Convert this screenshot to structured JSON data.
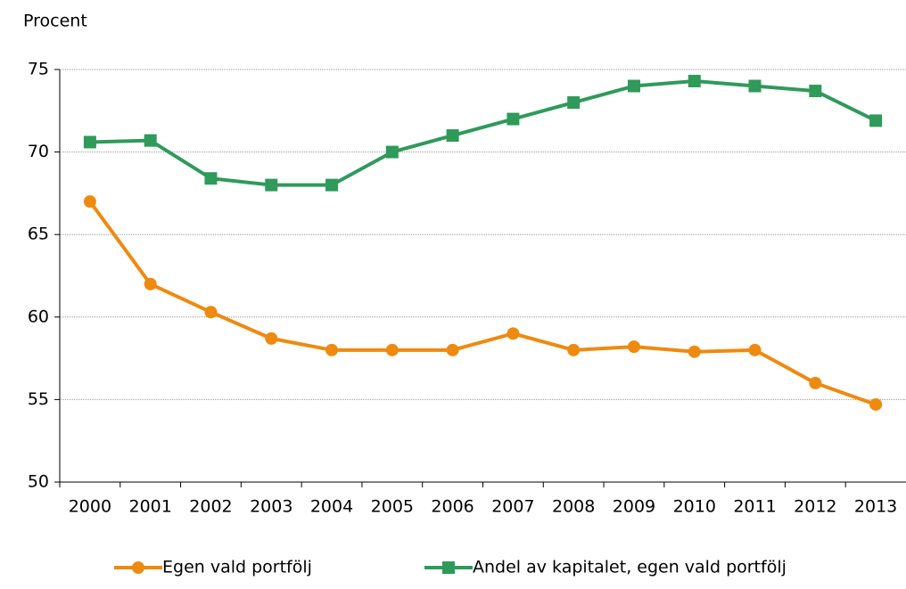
{
  "chart_data": {
    "type": "line",
    "y_label": "Procent",
    "categories": [
      "2000",
      "2001",
      "2002",
      "2003",
      "2004",
      "2005",
      "2006",
      "2007",
      "2008",
      "2009",
      "2010",
      "2011",
      "2012",
      "2013"
    ],
    "series": [
      {
        "name": "Egen vald portfölj",
        "color": "#ef8a10",
        "marker": "circle",
        "values": [
          67.0,
          62.0,
          60.3,
          58.7,
          58.0,
          58.0,
          58.0,
          59.0,
          58.0,
          58.2,
          57.9,
          58.0,
          56.0,
          54.7
        ]
      },
      {
        "name": "Andel av kapitalet, egen vald portfölj",
        "color": "#2f9a5a",
        "marker": "square",
        "values": [
          70.6,
          70.7,
          68.4,
          68.0,
          68.0,
          70.0,
          71.0,
          72.0,
          73.0,
          74.0,
          74.3,
          74.0,
          73.7,
          71.9
        ]
      }
    ],
    "ylim": [
      50,
      75
    ],
    "yticks": [
      50,
      55,
      60,
      65,
      70,
      75
    ],
    "grid": true,
    "legend": "bottom"
  }
}
